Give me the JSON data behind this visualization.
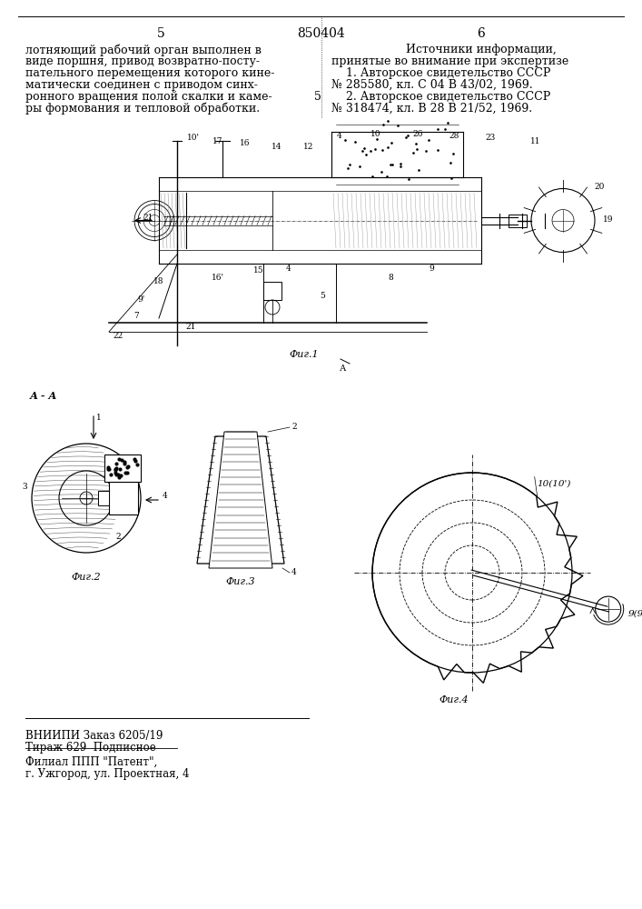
{
  "page_width": 7.07,
  "page_height": 10.0,
  "bg_color": "#ffffff",
  "page_num_left": "5",
  "page_num_center": "850404",
  "page_num_right": "6",
  "col1_lines": [
    "лотняющий рабочий орган выполнен в",
    "виде поршня, привод возвратно-посту-",
    "пательного перемещения которого кине-",
    "матически соединен с приводом синх-",
    "ронного вращения полой скалки и каме-",
    "ры формования и тепловой обработки."
  ],
  "col2_lines": [
    [
      "Источники информации,",
      "center"
    ],
    [
      "принятые во внимание при экспертизе",
      "left"
    ],
    [
      "    1. Авторское свидетельство СССР",
      "left"
    ],
    [
      "№ 285580, кл. С 04 В 43/02, 1969.",
      "left"
    ],
    [
      "    2. Авторское свидетельство СССР",
      "left"
    ],
    [
      "№ 318474, кл. В 28 В 21/52, 1969.",
      "left"
    ]
  ],
  "footer_vniiipi": "ВНИИПИ Заказ 6205/19",
  "footer_tirazh": "Тираж 629  Подписное",
  "footer_filial": "Филиал ППП \"Патент\",",
  "footer_address": "г. Ужгород, ул. Проектная, 4",
  "text_fontsize": 9.0,
  "header_fontsize": 10,
  "label_fontsize": 6.5,
  "fig_label_fontsize": 8.0
}
